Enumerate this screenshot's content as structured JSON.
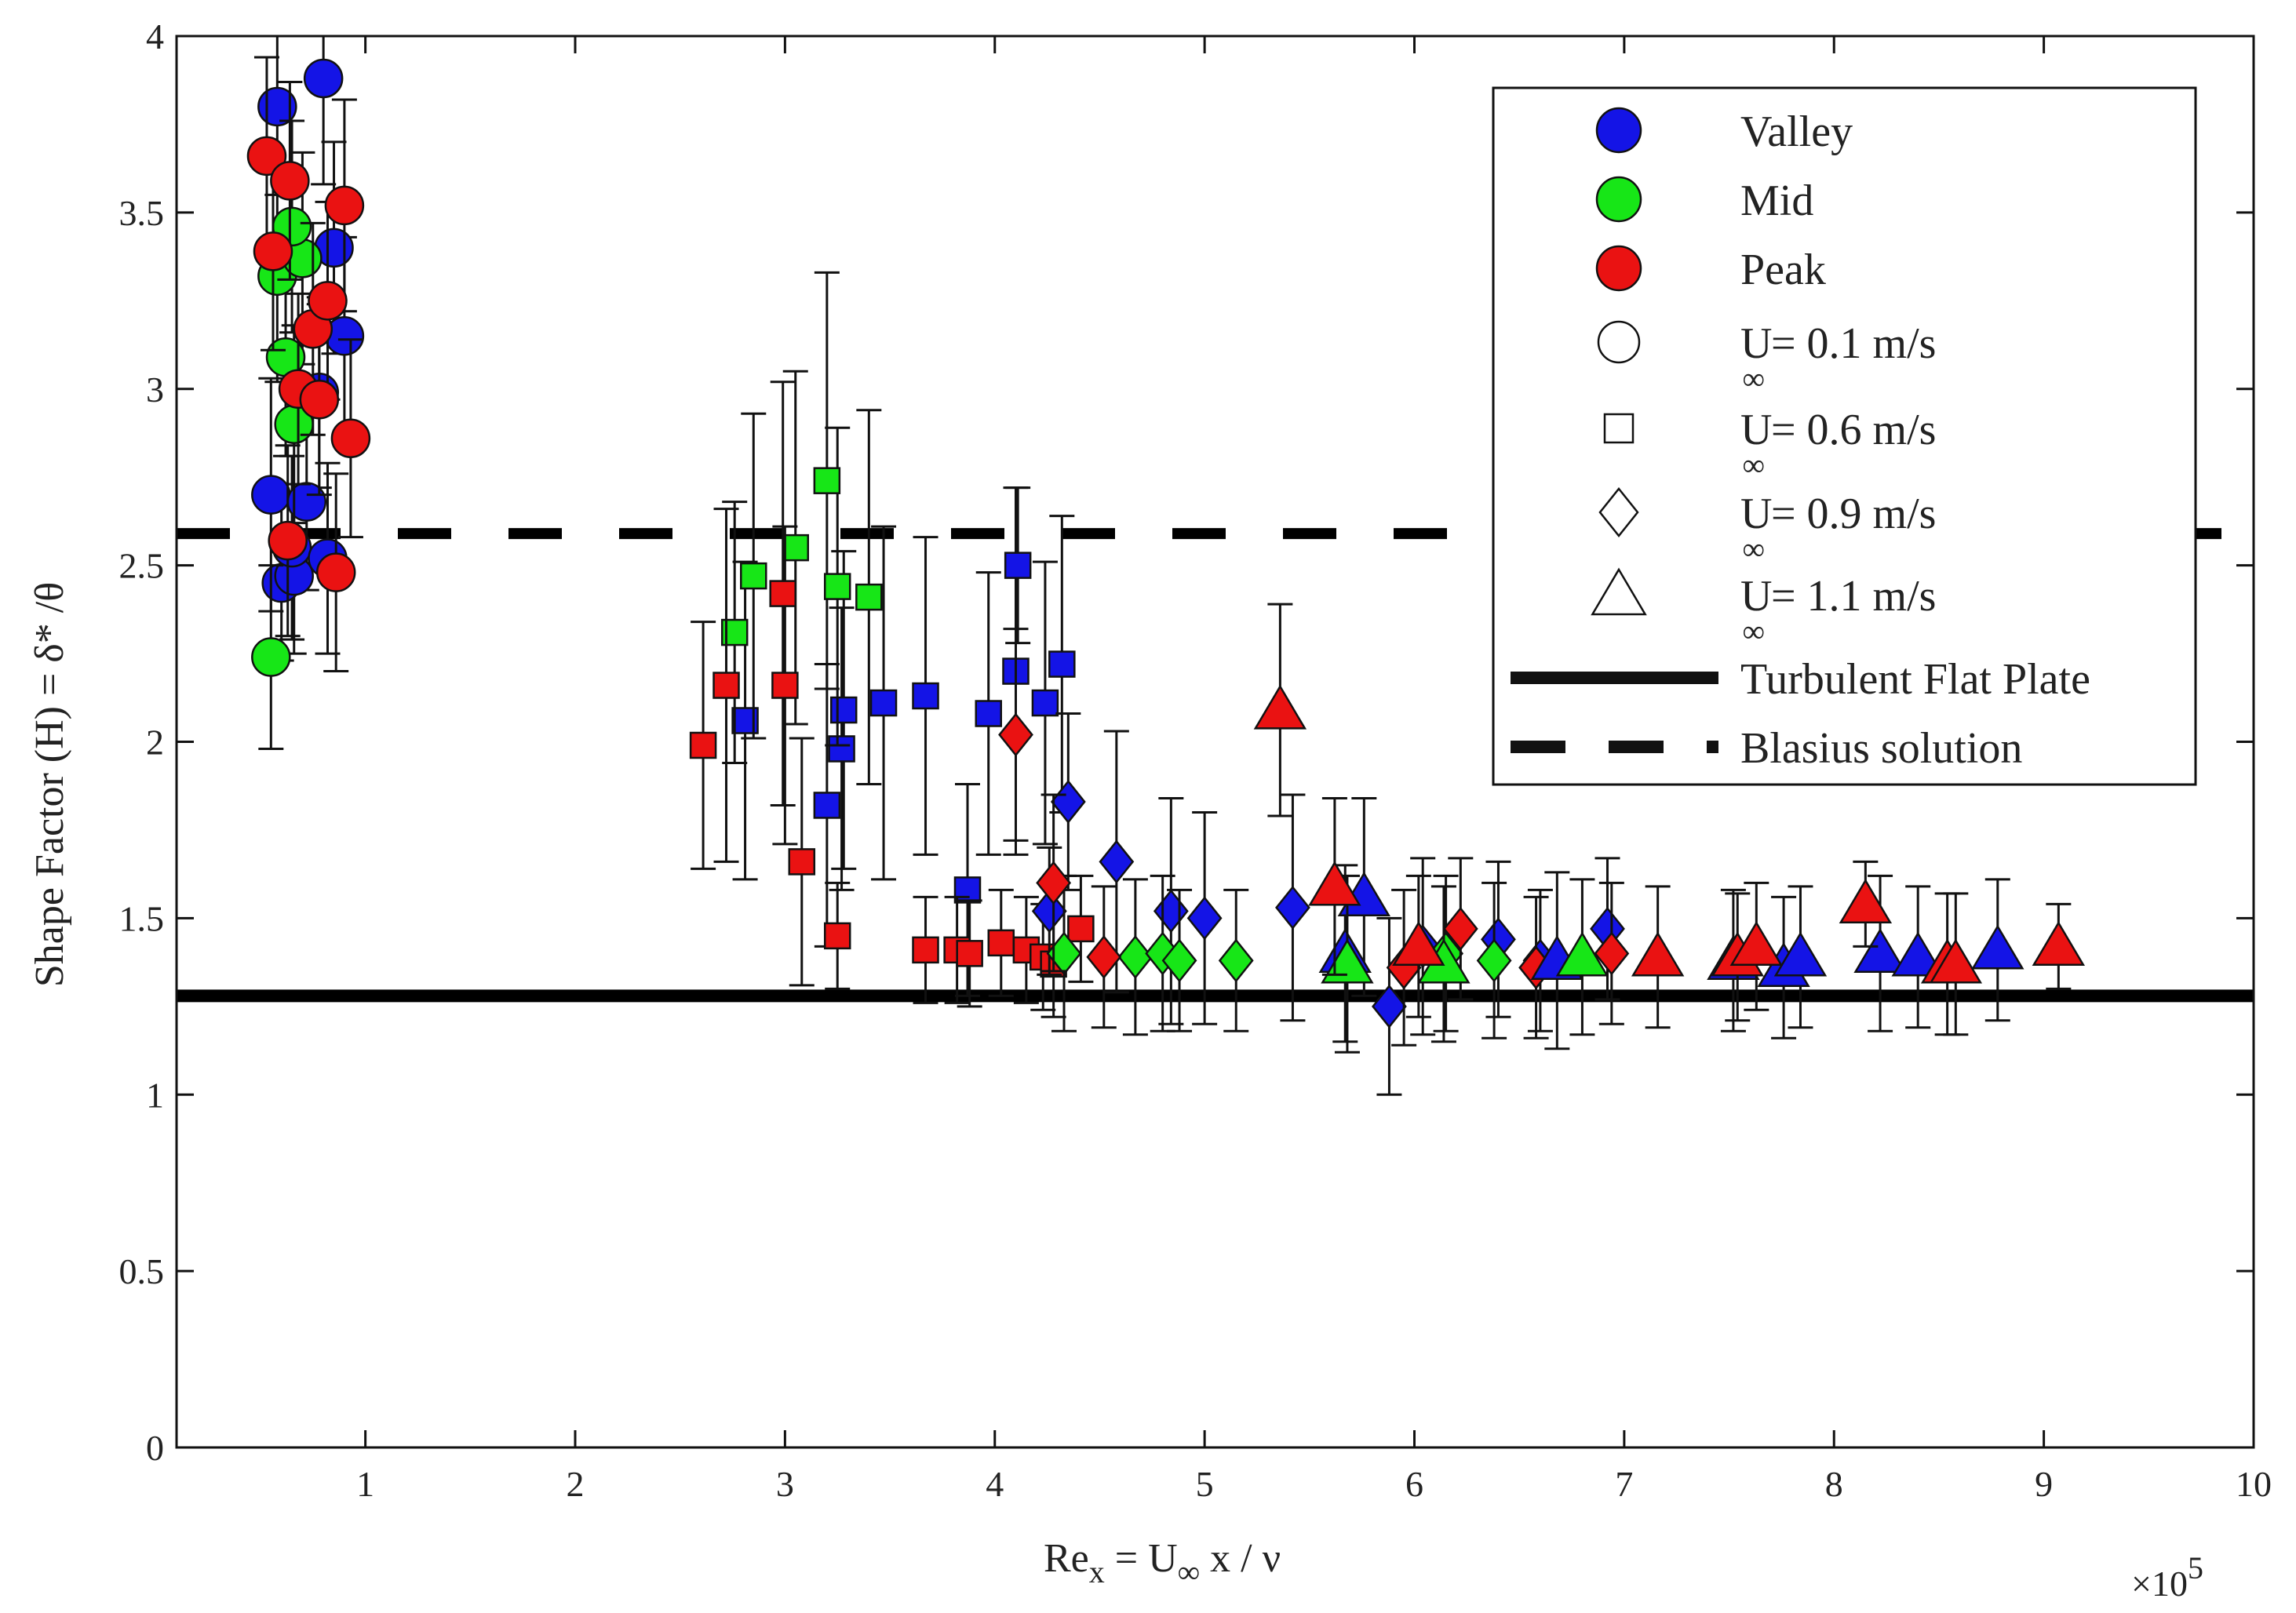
{
  "chart_data": {
    "type": "scatter",
    "title": "",
    "xlabel": {
      "main": "Re",
      "sub1": "x",
      "eq": " = U",
      "sub2": "∞",
      "rest": " x / ν"
    },
    "ylabel": "Shape Factor (H) = δ* /θ",
    "x_multiplier": {
      "times": "×10",
      "exp": "5"
    },
    "xlim": [
      0.1,
      10
    ],
    "ylim": [
      0,
      4
    ],
    "x_ticks": [
      1,
      2,
      3,
      4,
      5,
      6,
      7,
      8,
      9,
      10
    ],
    "x_tick_labels": [
      "1",
      "2",
      "3",
      "4",
      "5",
      "6",
      "7",
      "8",
      "9",
      "10"
    ],
    "y_ticks": [
      0,
      0.5,
      1,
      1.5,
      2,
      2.5,
      3,
      3.5,
      4
    ],
    "y_tick_labels": [
      "0",
      "0.5",
      "1",
      "1.5",
      "2",
      "2.5",
      "3",
      "3.5",
      "4"
    ],
    "colors": {
      "Valley": "#1414e6",
      "Mid": "#17e617",
      "Peak": "#ea1212",
      "line": "#000000"
    },
    "reference_lines": [
      {
        "name": "Turbulent Flat Plate",
        "y": 1.28,
        "style": "solid"
      },
      {
        "name": "Blasius solution",
        "y": 2.59,
        "style": "dashed"
      }
    ],
    "legend": {
      "position": "top-right",
      "entries": [
        {
          "kind": "color",
          "label": "Valley",
          "color": "#1414e6"
        },
        {
          "kind": "color",
          "label": "Mid",
          "color": "#17e617"
        },
        {
          "kind": "color",
          "label": "Peak",
          "color": "#ea1212"
        },
        {
          "kind": "marker",
          "marker": "circle",
          "label_main": "U",
          "label_sub": "∞",
          "label_rest": " = 0.1 m/s"
        },
        {
          "kind": "marker",
          "marker": "square",
          "label_main": "U",
          "label_sub": "∞",
          "label_rest": " = 0.6 m/s"
        },
        {
          "kind": "marker",
          "marker": "diamond",
          "label_main": "U",
          "label_sub": "∞",
          "label_rest": " = 0.9 m/s"
        },
        {
          "kind": "marker",
          "marker": "triangle",
          "label_main": "U",
          "label_sub": "∞",
          "label_rest": " = 1.1 m/s"
        },
        {
          "kind": "line",
          "style": "solid",
          "label": "Turbulent Flat Plate"
        },
        {
          "kind": "line",
          "style": "dashed",
          "label": "Blasius solution"
        }
      ]
    },
    "series": [
      {
        "name": "Valley, U∞ = 0.1 m/s",
        "group": "Valley",
        "marker": "circle",
        "x": [
          0.58,
          0.55,
          0.6,
          0.66,
          0.72,
          0.8,
          0.85,
          0.9,
          0.78,
          0.65,
          0.82
        ],
        "y": [
          3.8,
          2.7,
          2.45,
          2.47,
          2.68,
          3.88,
          3.4,
          3.15,
          2.99,
          2.55,
          2.52
        ],
        "err": [
          0.25,
          0.33,
          0.22,
          0.22,
          0.25,
          0.3,
          0.3,
          0.28,
          0.27,
          0.26,
          0.27
        ]
      },
      {
        "name": "Mid, U∞ = 0.1 m/s",
        "group": "Mid",
        "marker": "circle",
        "x": [
          0.55,
          0.58,
          0.62,
          0.66,
          0.7,
          0.65
        ],
        "y": [
          2.24,
          3.32,
          3.09,
          2.9,
          3.37,
          3.46
        ],
        "err": [
          0.26,
          0.3,
          0.28,
          0.28,
          0.3,
          0.3
        ]
      },
      {
        "name": "Peak, U∞ = 0.1 m/s",
        "group": "Peak",
        "marker": "circle",
        "x": [
          0.53,
          0.56,
          0.63,
          0.68,
          0.75,
          0.78,
          0.82,
          0.86,
          0.9,
          0.93,
          0.64
        ],
        "y": [
          3.66,
          3.39,
          2.57,
          3.0,
          3.17,
          2.97,
          3.25,
          2.48,
          3.52,
          2.86,
          3.59
        ],
        "err": [
          0.28,
          0.28,
          0.27,
          0.27,
          0.3,
          0.27,
          0.28,
          0.28,
          0.3,
          0.28,
          0.28
        ]
      },
      {
        "name": "Valley, U∞ = 0.6 m/s",
        "group": "Valley",
        "marker": "square",
        "x": [
          2.81,
          3.2,
          3.27,
          3.28,
          3.47,
          3.67,
          3.87,
          3.97,
          4.1,
          4.11,
          4.24,
          4.32
        ],
        "y": [
          2.06,
          1.82,
          1.98,
          2.09,
          2.11,
          2.13,
          1.58,
          2.08,
          2.2,
          2.5,
          2.11,
          2.22
        ],
        "err": [
          0.45,
          0.4,
          0.4,
          0.45,
          0.5,
          0.45,
          0.3,
          0.4,
          0.52,
          0.22,
          0.4,
          0.42
        ]
      },
      {
        "name": "Mid, U∞ = 0.6 m/s",
        "group": "Mid",
        "marker": "square",
        "x": [
          2.76,
          2.85,
          3.05,
          3.2,
          3.25,
          3.4
        ],
        "y": [
          2.31,
          2.47,
          2.55,
          2.74,
          2.44,
          2.41
        ],
        "err": [
          0.37,
          0.46,
          0.5,
          0.59,
          0.45,
          0.53
        ]
      },
      {
        "name": "Peak, U∞ = 0.6 m/s",
        "group": "Peak",
        "marker": "square",
        "x": [
          2.61,
          2.72,
          2.99,
          3.0,
          3.08,
          3.25,
          3.67,
          3.82,
          3.88,
          4.03,
          4.15,
          4.23,
          4.28,
          4.41
        ],
        "y": [
          1.99,
          2.16,
          2.42,
          2.16,
          1.66,
          1.45,
          1.41,
          1.41,
          1.4,
          1.43,
          1.41,
          1.39,
          1.37,
          1.47
        ],
        "err": [
          0.35,
          0.5,
          0.6,
          0.45,
          0.35,
          0.15,
          0.15,
          0.15,
          0.15,
          0.15,
          0.15,
          0.15,
          0.15,
          0.15
        ]
      },
      {
        "name": "Valley, U∞ = 0.9 m/s",
        "group": "Valley",
        "marker": "diamond",
        "x": [
          4.26,
          4.35,
          4.58,
          4.84,
          5.0,
          5.42,
          5.88,
          6.04,
          6.4,
          6.6,
          6.92
        ],
        "y": [
          1.52,
          1.83,
          1.66,
          1.52,
          1.5,
          1.53,
          1.25,
          1.42,
          1.44,
          1.38,
          1.47
        ],
        "err": [
          0.18,
          0.25,
          0.37,
          0.32,
          0.3,
          0.32,
          0.25,
          0.25,
          0.22,
          0.2,
          0.2
        ]
      },
      {
        "name": "Mid, U∞ = 0.9 m/s",
        "group": "Mid",
        "marker": "diamond",
        "x": [
          4.33,
          4.67,
          4.8,
          4.88,
          5.15,
          6.15,
          6.38
        ],
        "y": [
          1.4,
          1.39,
          1.4,
          1.38,
          1.38,
          1.4,
          1.38
        ],
        "err": [
          0.22,
          0.22,
          0.22,
          0.2,
          0.2,
          0.22,
          0.22
        ]
      },
      {
        "name": "Peak, U∞ = 0.9 m/s",
        "group": "Peak",
        "marker": "diamond",
        "x": [
          4.1,
          4.28,
          4.52,
          5.95,
          6.22,
          6.58,
          6.94
        ],
        "y": [
          2.02,
          1.6,
          1.39,
          1.36,
          1.47,
          1.36,
          1.4
        ],
        "err": [
          0.3,
          0.25,
          0.2,
          0.22,
          0.2,
          0.2,
          0.2
        ]
      },
      {
        "name": "Valley, U∞ = 1.1 m/s",
        "group": "Valley",
        "marker": "triangle",
        "x": [
          5.67,
          5.76,
          6.68,
          7.52,
          7.76,
          7.84,
          8.22,
          8.4,
          8.78
        ],
        "y": [
          1.4,
          1.56,
          1.38,
          1.38,
          1.36,
          1.39,
          1.4,
          1.39,
          1.41
        ],
        "err": [
          0.25,
          0.28,
          0.25,
          0.2,
          0.2,
          0.2,
          0.22,
          0.2,
          0.2
        ]
      },
      {
        "name": "Mid, U∞ = 1.1 m/s",
        "group": "Mid",
        "marker": "triangle",
        "x": [
          5.68,
          6.14,
          6.8
        ],
        "y": [
          1.37,
          1.37,
          1.39
        ],
        "err": [
          0.25,
          0.22,
          0.22
        ]
      },
      {
        "name": "Peak, U∞ = 1.1 m/s",
        "group": "Peak",
        "marker": "triangle",
        "x": [
          5.36,
          5.62,
          6.02,
          7.16,
          7.54,
          7.63,
          8.15,
          8.54,
          8.58,
          9.07
        ],
        "y": [
          2.09,
          1.59,
          1.42,
          1.39,
          1.39,
          1.42,
          1.54,
          1.37,
          1.37,
          1.42
        ],
        "err": [
          0.3,
          0.25,
          0.2,
          0.2,
          0.18,
          0.18,
          0.12,
          0.2,
          0.2,
          0.12
        ]
      }
    ]
  }
}
